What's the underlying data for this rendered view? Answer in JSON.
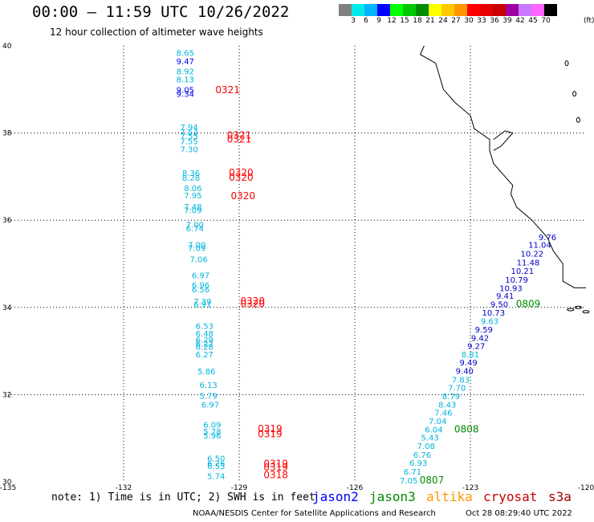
{
  "title": "00:00 – 11:59 UTC 10/26/2022",
  "subtitle": "12 hour collection of altimeter wave heights",
  "scale": {
    "colors": [
      "#808080",
      "#00eaea",
      "#00b4ff",
      "#0000ff",
      "#00ff00",
      "#00c800",
      "#008c00",
      "#ffff00",
      "#ffc800",
      "#ff9600",
      "#ff0000",
      "#e60000",
      "#c80000",
      "#a000a0",
      "#c878ff",
      "#ff64ff",
      "#000000"
    ],
    "labels": [
      "3",
      "6",
      "9",
      "12",
      "15",
      "18",
      "21",
      "24",
      "27",
      "30",
      "33",
      "36",
      "39",
      "42",
      "45",
      "70"
    ],
    "unit": "(ft)"
  },
  "map": {
    "lon_range": [
      -135,
      -120
    ],
    "lat_range": [
      30,
      40
    ],
    "lon_ticks": [
      "-135",
      "-132",
      "-129",
      "-126",
      "-123",
      "-120"
    ],
    "lat_ticks": [
      "40",
      "38",
      "36",
      "34",
      "32",
      "30"
    ]
  },
  "tracks": [
    {
      "name": "cyan-west",
      "color": "#00b4dc",
      "points": [
        {
          "lon": -130.4,
          "lat": 39.84,
          "v": "8.65"
        },
        {
          "lon": -130.4,
          "lat": 39.65,
          "v": "9.47",
          "c": "#0000ff"
        },
        {
          "lon": -130.4,
          "lat": 39.42,
          "v": "8.92"
        },
        {
          "lon": -130.4,
          "lat": 39.24,
          "v": "8.13"
        },
        {
          "lon": -130.4,
          "lat": 39.0,
          "v": "9.05",
          "c": "#0000ff"
        },
        {
          "lon": -130.4,
          "lat": 38.9,
          "v": "9.34",
          "c": "#0000ff"
        },
        {
          "lon": -130.3,
          "lat": 38.14,
          "v": "7.94"
        },
        {
          "lon": -130.3,
          "lat": 38.03,
          "v": "7.53"
        },
        {
          "lon": -130.3,
          "lat": 37.94,
          "v": "7.55"
        },
        {
          "lon": -130.3,
          "lat": 37.82,
          "v": "7.55"
        },
        {
          "lon": -130.3,
          "lat": 37.63,
          "v": "7.30"
        },
        {
          "lon": -130.25,
          "lat": 37.09,
          "v": "8.36"
        },
        {
          "lon": -130.25,
          "lat": 36.98,
          "v": "8.28"
        },
        {
          "lon": -130.2,
          "lat": 36.74,
          "v": "8.06"
        },
        {
          "lon": -130.2,
          "lat": 36.57,
          "v": "7.95"
        },
        {
          "lon": -130.2,
          "lat": 36.32,
          "v": "7.48"
        },
        {
          "lon": -130.2,
          "lat": 36.23,
          "v": "7.09"
        },
        {
          "lon": -130.15,
          "lat": 35.9,
          "v": "7.00"
        },
        {
          "lon": -130.15,
          "lat": 35.82,
          "v": "6.74"
        },
        {
          "lon": -130.1,
          "lat": 35.44,
          "v": "7.00"
        },
        {
          "lon": -130.1,
          "lat": 35.37,
          "v": "7.09"
        },
        {
          "lon": -130.05,
          "lat": 35.11,
          "v": "7.06"
        },
        {
          "lon": -130.0,
          "lat": 34.74,
          "v": "6.97"
        },
        {
          "lon": -130.0,
          "lat": 34.52,
          "v": "6.96"
        },
        {
          "lon": -130.0,
          "lat": 34.42,
          "v": "6.56"
        },
        {
          "lon": -129.95,
          "lat": 34.14,
          "v": "7.39"
        },
        {
          "lon": -129.95,
          "lat": 34.08,
          "v": "6.91"
        },
        {
          "lon": -129.9,
          "lat": 33.58,
          "v": "6.53"
        },
        {
          "lon": -129.9,
          "lat": 33.41,
          "v": "6.48"
        },
        {
          "lon": -129.9,
          "lat": 33.27,
          "v": "6.29"
        },
        {
          "lon": -129.9,
          "lat": 33.18,
          "v": "6.22"
        },
        {
          "lon": -129.9,
          "lat": 33.1,
          "v": "6.28"
        },
        {
          "lon": -129.9,
          "lat": 32.93,
          "v": "6.27"
        },
        {
          "lon": -129.85,
          "lat": 32.54,
          "v": "5.86"
        },
        {
          "lon": -129.8,
          "lat": 32.23,
          "v": "6.13"
        },
        {
          "lon": -129.8,
          "lat": 31.98,
          "v": "5.79"
        },
        {
          "lon": -129.75,
          "lat": 31.78,
          "v": "6.97"
        },
        {
          "lon": -129.7,
          "lat": 31.32,
          "v": "6.09"
        },
        {
          "lon": -129.7,
          "lat": 31.16,
          "v": "5.78"
        },
        {
          "lon": -129.7,
          "lat": 31.07,
          "v": "5.96"
        },
        {
          "lon": -129.6,
          "lat": 30.54,
          "v": "6.50"
        },
        {
          "lon": -129.6,
          "lat": 30.43,
          "v": "6.26"
        },
        {
          "lon": -129.6,
          "lat": 30.37,
          "v": "6.53"
        },
        {
          "lon": -129.6,
          "lat": 30.14,
          "v": "5.74"
        }
      ]
    },
    {
      "name": "cryosat-west",
      "color": "#ff0000",
      "points": [
        {
          "lon": -129.3,
          "lat": 38.99,
          "v": "0321"
        },
        {
          "lon": -129.0,
          "lat": 37.95,
          "v": "0321"
        },
        {
          "lon": -129.0,
          "lat": 37.85,
          "v": "0321"
        },
        {
          "lon": -128.95,
          "lat": 37.09,
          "v": "0320"
        },
        {
          "lon": -128.95,
          "lat": 36.98,
          "v": "0320"
        },
        {
          "lon": -128.9,
          "lat": 36.56,
          "v": "0320"
        },
        {
          "lon": -128.65,
          "lat": 34.14,
          "v": "0320"
        },
        {
          "lon": -128.65,
          "lat": 34.08,
          "v": "0320"
        },
        {
          "lon": -128.2,
          "lat": 31.22,
          "v": "0319"
        },
        {
          "lon": -128.2,
          "lat": 31.1,
          "v": "0319"
        },
        {
          "lon": -128.05,
          "lat": 30.41,
          "v": "0319"
        },
        {
          "lon": -128.05,
          "lat": 30.33,
          "v": "0319"
        },
        {
          "lon": -128.05,
          "lat": 30.16,
          "v": "0318"
        }
      ]
    },
    {
      "name": "jason-east",
      "color": "#0000c8",
      "points": [
        {
          "lon": -121.0,
          "lat": 35.62,
          "v": "9.76"
        },
        {
          "lon": -121.2,
          "lat": 35.44,
          "v": "11.04"
        },
        {
          "lon": -121.4,
          "lat": 35.24,
          "v": "10.22"
        },
        {
          "lon": -121.5,
          "lat": 35.04,
          "v": "11.48"
        },
        {
          "lon": -121.65,
          "lat": 34.84,
          "v": "10.21"
        },
        {
          "lon": -121.8,
          "lat": 34.64,
          "v": "10.79"
        },
        {
          "lon": -121.95,
          "lat": 34.45,
          "v": "10.93"
        },
        {
          "lon": -122.1,
          "lat": 34.27,
          "v": "9.41"
        },
        {
          "lon": -122.25,
          "lat": 34.08,
          "v": "9.50"
        },
        {
          "lon": -122.4,
          "lat": 33.89,
          "v": "10.73"
        },
        {
          "lon": -122.5,
          "lat": 33.69,
          "v": "9.63",
          "c": "#00b4dc"
        },
        {
          "lon": -122.65,
          "lat": 33.5,
          "v": "9.59"
        },
        {
          "lon": -122.75,
          "lat": 33.31,
          "v": "9.42"
        },
        {
          "lon": -122.85,
          "lat": 33.12,
          "v": "9.27"
        },
        {
          "lon": -123.0,
          "lat": 32.93,
          "v": "8.81",
          "c": "#00b4dc"
        },
        {
          "lon": -123.05,
          "lat": 32.74,
          "v": "9.49"
        },
        {
          "lon": -123.15,
          "lat": 32.55,
          "v": "9.40"
        },
        {
          "lon": -123.25,
          "lat": 32.35,
          "v": "7.83",
          "c": "#00b4dc"
        },
        {
          "lon": -123.35,
          "lat": 32.16,
          "v": "7.70",
          "c": "#00b4dc"
        },
        {
          "lon": -123.5,
          "lat": 31.97,
          "v": "8.79",
          "c": "#00b4dc"
        },
        {
          "lon": -123.6,
          "lat": 31.78,
          "v": "8.43",
          "c": "#00b4dc"
        },
        {
          "lon": -123.7,
          "lat": 31.59,
          "v": "7.46",
          "c": "#00b4dc"
        },
        {
          "lon": -123.85,
          "lat": 31.4,
          "v": "7.04",
          "c": "#00b4dc"
        },
        {
          "lon": -123.95,
          "lat": 31.21,
          "v": "6.04",
          "c": "#00b4dc"
        },
        {
          "lon": -124.05,
          "lat": 31.02,
          "v": "5.43",
          "c": "#00b4dc"
        },
        {
          "lon": -124.15,
          "lat": 30.83,
          "v": "7.08",
          "c": "#00b4dc"
        },
        {
          "lon": -124.25,
          "lat": 30.63,
          "v": "6.76",
          "c": "#00b4dc"
        },
        {
          "lon": -124.35,
          "lat": 30.44,
          "v": "6.93",
          "c": "#00b4dc"
        },
        {
          "lon": -124.5,
          "lat": 30.24,
          "v": "6.71",
          "c": "#00b4dc"
        },
        {
          "lon": -124.6,
          "lat": 30.04,
          "v": "7.05",
          "c": "#00b4dc"
        }
      ]
    },
    {
      "name": "jason3-east",
      "color": "#008c00",
      "points": [
        {
          "lon": -121.5,
          "lat": 34.08,
          "v": "0809"
        },
        {
          "lon": -123.1,
          "lat": 31.21,
          "v": "0808"
        },
        {
          "lon": -124.0,
          "lat": 30.04,
          "v": "0807"
        }
      ]
    }
  ],
  "note": "note: 1) Time is in UTC; 2) SWH is in feet",
  "missions": [
    {
      "label": "jason2",
      "color": "#0000ff"
    },
    {
      "label": "jason3",
      "color": "#008c00"
    },
    {
      "label": "altika",
      "color": "#ff9600"
    },
    {
      "label": "cryosat",
      "color": "#c80000"
    },
    {
      "label": "s3a",
      "color": "#a00000"
    }
  ],
  "footer": "NOAA/NESDIS Center for Satellite Applications and Research",
  "timestamp": "Oct 28 08:29:40 UTC 2022"
}
